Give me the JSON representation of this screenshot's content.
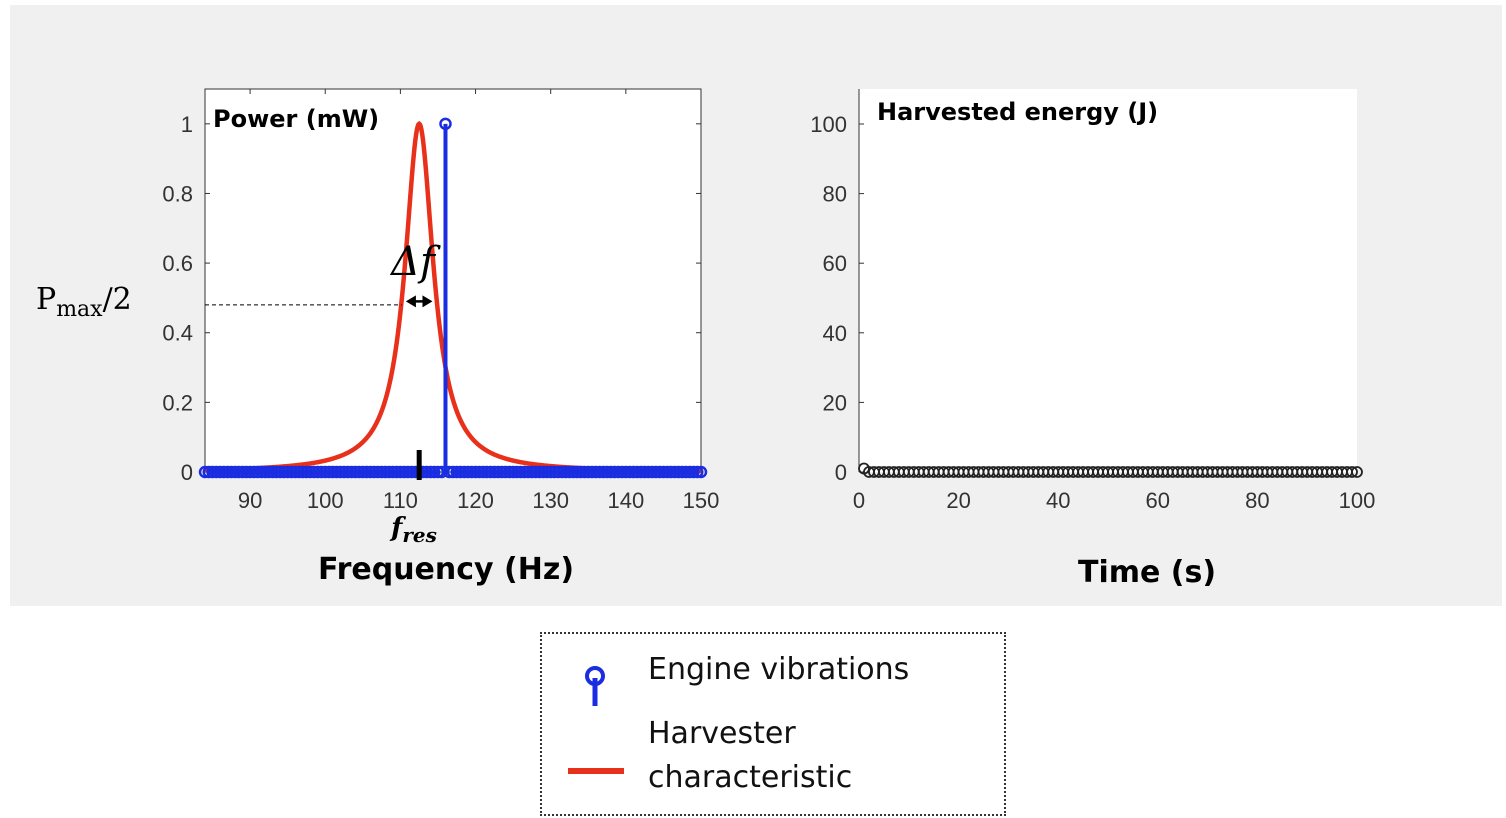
{
  "left_chart": {
    "inner_label": "Power (mW)",
    "xlabel": "Frequency (Hz)",
    "fres_label": "f",
    "fres_sub": "res",
    "pmax_label_main": "P",
    "pmax_label_sub": "max",
    "pmax_label_tail": "/2",
    "delta_label": "Δf"
  },
  "right_chart": {
    "inner_label": "Harvested energy (J)",
    "xlabel": "Time (s)"
  },
  "legend": {
    "engine": "Engine vibrations",
    "harvester_line1": "Harvester",
    "harvester_line2": "characteristic"
  },
  "colors": {
    "engine": "#1a2de0",
    "harvester": "#e8301a",
    "energy": "#222222",
    "background": "#f0f0f0"
  },
  "chart_data": [
    {
      "type": "line",
      "xlim": [
        84,
        150
      ],
      "ylim": [
        0,
        1.1
      ],
      "xticks": [
        90,
        100,
        110,
        120,
        130,
        140,
        150
      ],
      "yticks": [
        0,
        0.2,
        0.4,
        0.6,
        0.8,
        1
      ],
      "ytick_labels": [
        "0",
        "0.2",
        "0.4",
        "0.6",
        "0.8",
        "1"
      ],
      "series": [
        {
          "name": "Harvester characteristic",
          "kind": "lorentzian",
          "center": 112.5,
          "half_width": 2.3,
          "peak": 1.0
        },
        {
          "name": "Engine vibrations",
          "kind": "stem",
          "x_start": 84,
          "x_end": 150,
          "x_step": 0.5,
          "peak_x": 116,
          "peak_y": 1.0
        }
      ],
      "annotations": {
        "fres_x": 112.5,
        "half_max_y": 0.5
      }
    },
    {
      "type": "scatter",
      "xlim": [
        0,
        100
      ],
      "ylim": [
        0,
        100
      ],
      "xticks": [
        0,
        20,
        40,
        60,
        80,
        100
      ],
      "yticks": [
        0,
        20,
        40,
        60,
        80,
        100
      ],
      "series": [
        {
          "name": "Harvested energy",
          "x_start": 1,
          "x_end": 100,
          "x_step": 1,
          "first_y": 1,
          "y": 0
        }
      ]
    }
  ]
}
